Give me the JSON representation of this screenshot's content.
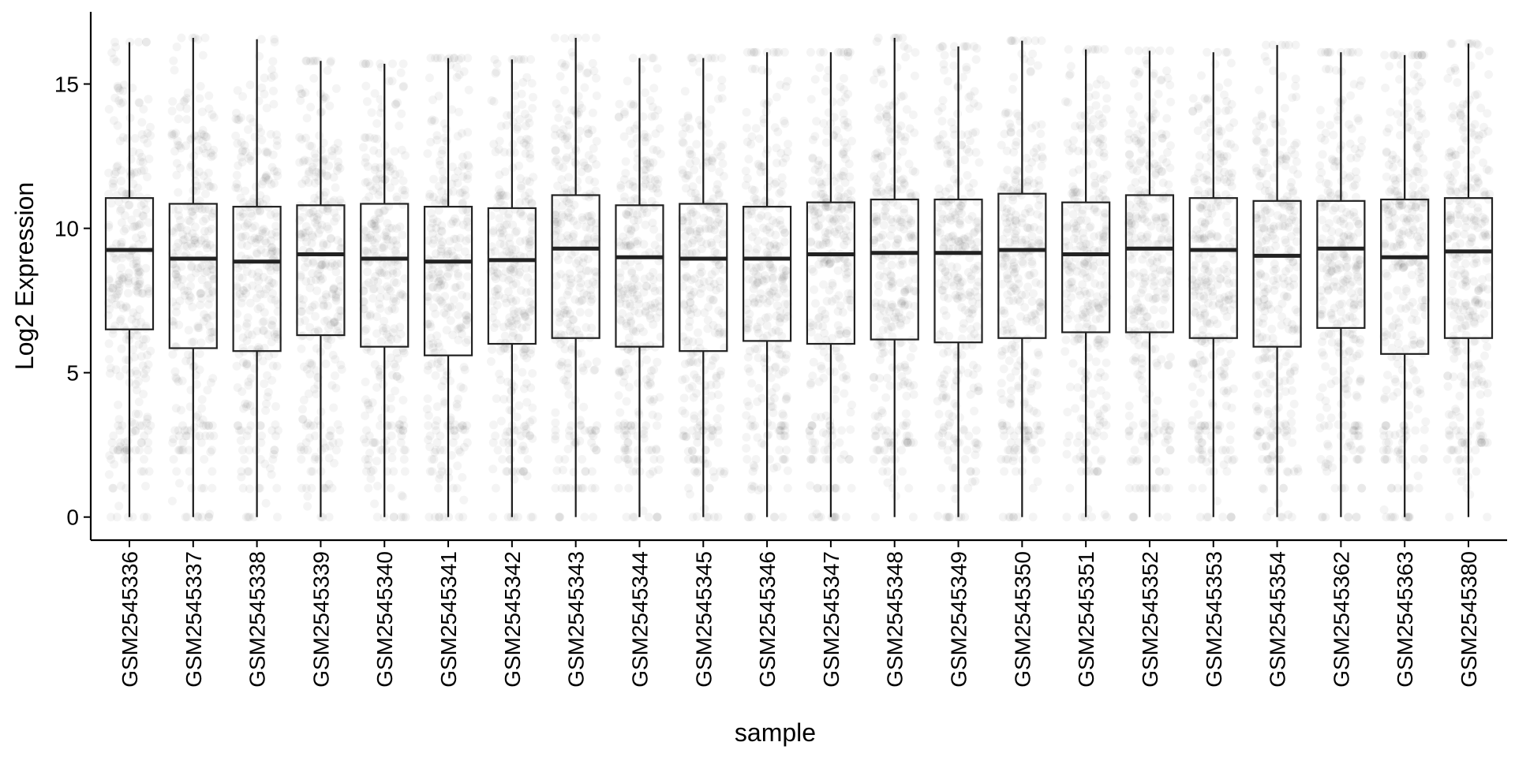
{
  "chart_data": {
    "type": "box",
    "xlabel": "sample",
    "ylabel": "Log2 Expression",
    "ylim": [
      -0.8,
      17.5
    ],
    "yticks": [
      0,
      5,
      10,
      15
    ],
    "legend": "none",
    "grid": false,
    "categories": [
      "GSM2545336",
      "GSM2545337",
      "GSM2545338",
      "GSM2545339",
      "GSM2545340",
      "GSM2545341",
      "GSM2545342",
      "GSM2545343",
      "GSM2545344",
      "GSM2545345",
      "GSM2545346",
      "GSM2545347",
      "GSM2545348",
      "GSM2545349",
      "GSM2545350",
      "GSM2545351",
      "GSM2545352",
      "GSM2545353",
      "GSM2545354",
      "GSM2545362",
      "GSM2545363",
      "GSM2545380"
    ],
    "boxes": [
      {
        "min": 0,
        "q1": 6.5,
        "median": 9.25,
        "q3": 11.05,
        "max": 16.45
      },
      {
        "min": 0,
        "q1": 5.85,
        "median": 8.95,
        "q3": 10.85,
        "max": 16.6
      },
      {
        "min": 0,
        "q1": 5.75,
        "median": 8.85,
        "q3": 10.75,
        "max": 16.55
      },
      {
        "min": 0,
        "q1": 6.3,
        "median": 9.1,
        "q3": 10.8,
        "max": 15.8
      },
      {
        "min": 0,
        "q1": 5.9,
        "median": 8.95,
        "q3": 10.85,
        "max": 15.7
      },
      {
        "min": 0,
        "q1": 5.6,
        "median": 8.85,
        "q3": 10.75,
        "max": 15.9
      },
      {
        "min": 0,
        "q1": 6.0,
        "median": 8.9,
        "q3": 10.7,
        "max": 15.85
      },
      {
        "min": 0,
        "q1": 6.2,
        "median": 9.3,
        "q3": 11.15,
        "max": 16.6
      },
      {
        "min": 0,
        "q1": 5.9,
        "median": 9.0,
        "q3": 10.8,
        "max": 15.9
      },
      {
        "min": 0,
        "q1": 5.75,
        "median": 8.95,
        "q3": 10.85,
        "max": 15.9
      },
      {
        "min": 0,
        "q1": 6.1,
        "median": 8.95,
        "q3": 10.75,
        "max": 16.1
      },
      {
        "min": 0,
        "q1": 6.0,
        "median": 9.1,
        "q3": 10.9,
        "max": 16.1
      },
      {
        "min": 0,
        "q1": 6.15,
        "median": 9.15,
        "q3": 11.0,
        "max": 16.6
      },
      {
        "min": 0,
        "q1": 6.05,
        "median": 9.15,
        "q3": 11.0,
        "max": 16.3
      },
      {
        "min": 0,
        "q1": 6.2,
        "median": 9.25,
        "q3": 11.2,
        "max": 16.5
      },
      {
        "min": 0,
        "q1": 6.4,
        "median": 9.1,
        "q3": 10.9,
        "max": 16.2
      },
      {
        "min": 0,
        "q1": 6.4,
        "median": 9.3,
        "q3": 11.15,
        "max": 16.15
      },
      {
        "min": 0,
        "q1": 6.2,
        "median": 9.25,
        "q3": 11.05,
        "max": 16.1
      },
      {
        "min": 0,
        "q1": 5.9,
        "median": 9.05,
        "q3": 10.95,
        "max": 16.35
      },
      {
        "min": 0,
        "q1": 6.55,
        "median": 9.3,
        "q3": 10.95,
        "max": 16.1
      },
      {
        "min": 0,
        "q1": 5.65,
        "median": 9.0,
        "q3": 11.0,
        "max": 16.0
      },
      {
        "min": 0,
        "q1": 6.2,
        "median": 9.2,
        "q3": 11.05,
        "max": 16.4
      }
    ]
  }
}
